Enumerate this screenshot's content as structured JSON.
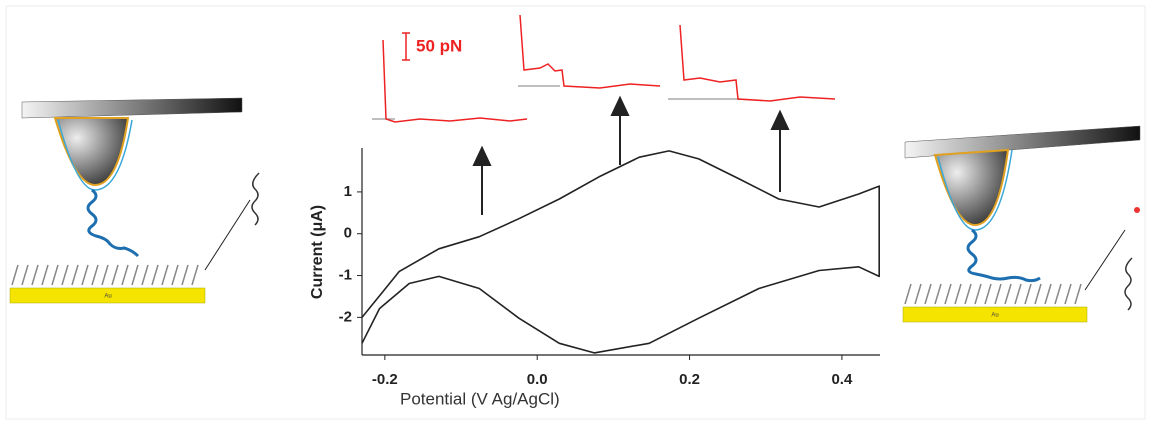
{
  "chart_data": {
    "type": "line",
    "x_label": "Potential (V Ag/AgCl)",
    "y_label": "Current (μA)",
    "x": [
      -0.23,
      -0.181,
      -0.129,
      -0.076,
      -0.024,
      0.029,
      0.081,
      0.134,
      0.173,
      0.212,
      0.265,
      0.317,
      0.37,
      0.422,
      0.449,
      0.449,
      0.422,
      0.37,
      0.291,
      0.212,
      0.147,
      0.075,
      0.029,
      -0.024,
      -0.076,
      -0.129,
      -0.168,
      -0.207,
      -0.23
    ],
    "series": [
      {
        "color": "#222222",
        "values": [
          -2.0,
          -0.9,
          -0.36,
          -0.07,
          0.36,
          0.83,
          1.36,
          1.83,
          1.98,
          1.79,
          1.31,
          0.83,
          0.64,
          0.95,
          1.14,
          -1.02,
          -0.79,
          -0.88,
          -1.31,
          -2.02,
          -2.62,
          -2.85,
          -2.62,
          -2.02,
          -1.31,
          -1.02,
          -1.19,
          -1.79,
          -2.62
        ]
      }
    ],
    "xlim": [
      -0.23,
      0.45
    ],
    "ylim": [
      -2.9,
      2.05
    ],
    "xticks": [
      -0.2,
      {
        "value": 0,
        "label": "0.0"
      },
      0.2,
      0.4
    ],
    "yticks": [
      1,
      0,
      -1,
      -2
    ]
  },
  "annotations": {
    "scale_bar": "50 pN",
    "electrode_labels": [
      "Au",
      "Au"
    ]
  }
}
